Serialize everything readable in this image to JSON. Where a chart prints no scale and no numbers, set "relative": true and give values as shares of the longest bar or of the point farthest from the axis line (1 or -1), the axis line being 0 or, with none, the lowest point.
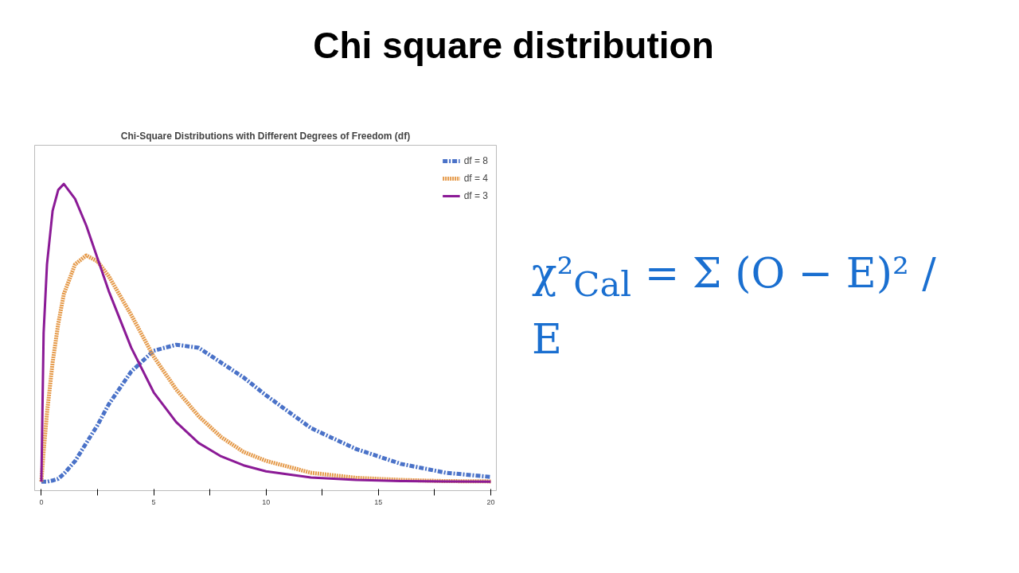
{
  "chart_data": {
    "type": "line",
    "title": "Chi-Square Distributions with Different Degrees of Freedom (df)",
    "subtitle": "Chi square distribution",
    "annotations": [
      "χ²$_{Cal}$ = Σ (O − E)² / E"
    ],
    "x": [
      0,
      0.1,
      0.25,
      0.5,
      0.75,
      1,
      1.5,
      2,
      2.5,
      3,
      4,
      5,
      6,
      7,
      8,
      9,
      10,
      12,
      14,
      16,
      18,
      20
    ],
    "relative": true,
    "xlim": [
      -0.3,
      20.25
    ],
    "xticks": [
      0,
      {
        "value": 2.5,
        "label": null
      },
      5,
      {
        "value": 7.5,
        "label": null
      },
      10,
      {
        "value": 12.5,
        "label": null
      },
      15,
      {
        "value": 17.5,
        "label": null
      },
      20
    ],
    "tick_labels": "x",
    "legend": "top right",
    "series": [
      {
        "name": "df = 8",
        "color": "#4a72c8",
        "line_style": "dashed",
        "values": [
          0,
          0,
          0,
          0.004,
          0.01,
          0.026,
          0.069,
          0.13,
          0.19,
          0.26,
          0.37,
          0.44,
          0.46,
          0.45,
          0.4,
          0.35,
          0.29,
          0.18,
          0.11,
          0.06,
          0.03,
          0.016
        ]
      },
      {
        "name": "df = 4",
        "color": "#e59a4a",
        "line_style": "dotted",
        "values": [
          0,
          0.1,
          0.23,
          0.4,
          0.53,
          0.63,
          0.73,
          0.76,
          0.74,
          0.69,
          0.56,
          0.42,
          0.31,
          0.22,
          0.15,
          0.1,
          0.07,
          0.03,
          0.013,
          0.006,
          0.002,
          0.001
        ]
      },
      {
        "name": "df = 3",
        "color": "#8b1a96",
        "line_style": "solid",
        "values": [
          0,
          0.5,
          0.73,
          0.91,
          0.98,
          1,
          0.95,
          0.86,
          0.75,
          0.64,
          0.45,
          0.3,
          0.2,
          0.13,
          0.085,
          0.055,
          0.035,
          0.014,
          0.006,
          0.002,
          0.001,
          0
        ]
      }
    ]
  }
}
